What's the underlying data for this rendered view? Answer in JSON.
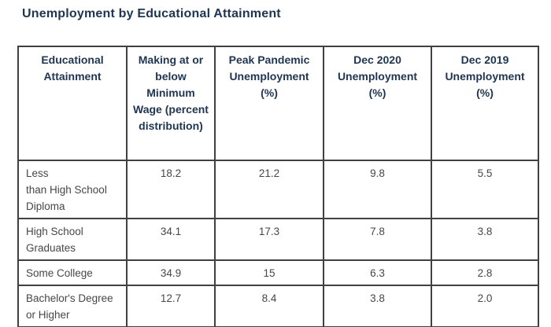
{
  "title": "Unemployment by Educational Attainment",
  "colors": {
    "title_text": "#1e3551",
    "header_text": "#1e3551",
    "body_text": "#474747",
    "border": "#404040",
    "background": "#ffffff"
  },
  "chart_data": {
    "type": "table",
    "title": "Unemployment by Educational Attainment",
    "columns": [
      "Educational Attainment",
      "Making at or below Minimum Wage (percent distribution)",
      "Peak Pandemic Unemployment (%)",
      "Dec 2020 Unemployment (%)",
      "Dec 2019 Unemployment (%)"
    ],
    "rows": [
      {
        "label": "Less than High School Diploma",
        "label_lines": [
          "Less",
          "than High School",
          "Diploma"
        ],
        "values": [
          "18.2",
          "21.2",
          "9.8",
          "5.5"
        ]
      },
      {
        "label": "High School Graduates",
        "label_lines": [
          "High School",
          "Graduates"
        ],
        "values": [
          "34.1",
          "17.3",
          "7.8",
          "3.8"
        ]
      },
      {
        "label": "Some College",
        "label_lines": [
          "Some College"
        ],
        "values": [
          "34.9",
          "15",
          "6.3",
          "2.8"
        ]
      },
      {
        "label": "Bachelor's Degree or Higher",
        "label_lines": [
          "Bachelor's Degree",
          "or Higher"
        ],
        "values": [
          "12.7",
          "8.4",
          "3.8",
          "2.0"
        ]
      }
    ]
  }
}
